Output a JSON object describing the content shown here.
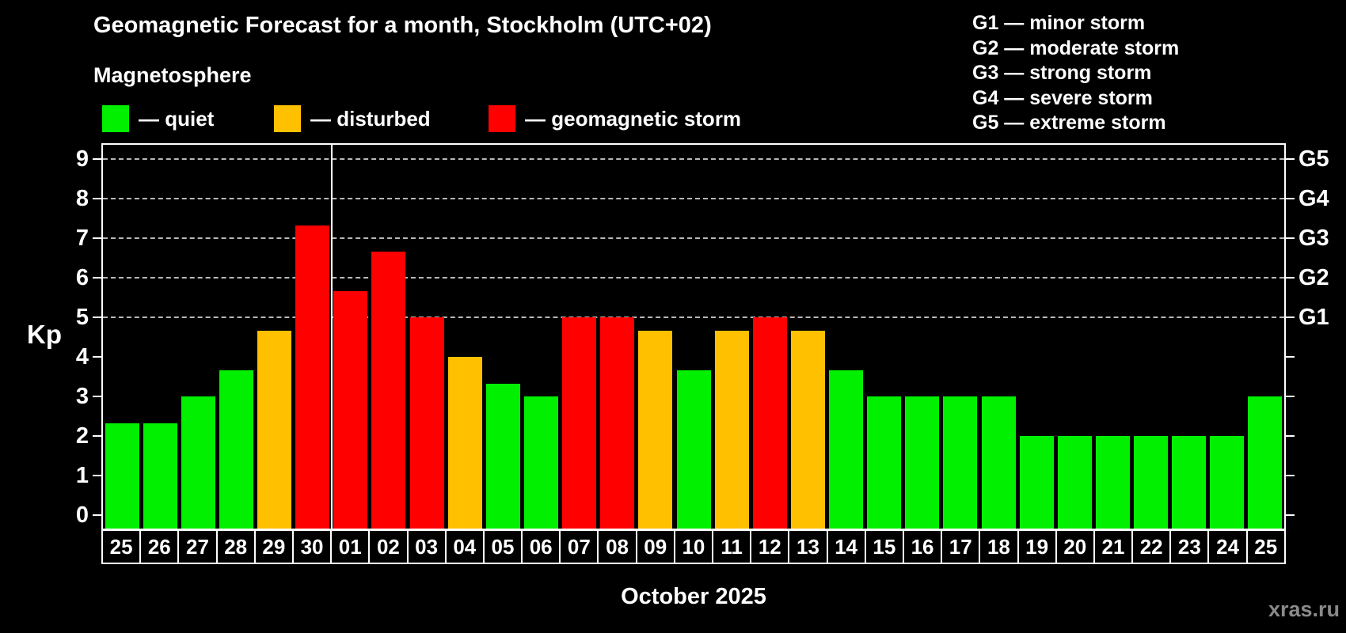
{
  "title": "Geomagnetic Forecast for a month, Stockholm (UTC+02)",
  "subtitle": "Magnetosphere",
  "status_legend": [
    {
      "status": "quiet",
      "label": "— quiet",
      "color": "#00f000"
    },
    {
      "status": "disturbed",
      "label": "— disturbed",
      "color": "#ffc000"
    },
    {
      "status": "storm",
      "label": "— geomagnetic storm",
      "color": "#ff0000"
    }
  ],
  "g_legend": [
    {
      "code": "G1",
      "label": "minor storm"
    },
    {
      "code": "G2",
      "label": "moderate storm"
    },
    {
      "code": "G3",
      "label": "strong storm"
    },
    {
      "code": "G4",
      "label": "severe storm"
    },
    {
      "code": "G5",
      "label": "extreme storm"
    }
  ],
  "watermark": "xras.ru",
  "chart_data": {
    "type": "bar",
    "title": "Geomagnetic Forecast for a month, Stockholm (UTC+02)",
    "ylabel": "Kp",
    "xlabel": "October 2025",
    "ylim": [
      0,
      9
    ],
    "yticks": [
      0,
      1,
      2,
      3,
      4,
      5,
      6,
      7,
      8,
      9
    ],
    "gridlines": [
      5,
      6,
      7,
      8,
      9
    ],
    "grid_style": "dashed",
    "legend_position": "top",
    "right_axis": [
      {
        "kp": 5,
        "label": "G1"
      },
      {
        "kp": 6,
        "label": "G2"
      },
      {
        "kp": 7,
        "label": "G3"
      },
      {
        "kp": 8,
        "label": "G4"
      },
      {
        "kp": 9,
        "label": "G5"
      }
    ],
    "month_boundary_index": 6,
    "days": [
      {
        "date": "25",
        "kp": 2.33,
        "status": "quiet"
      },
      {
        "date": "26",
        "kp": 2.33,
        "status": "quiet"
      },
      {
        "date": "27",
        "kp": 3,
        "status": "quiet"
      },
      {
        "date": "28",
        "kp": 3.67,
        "status": "quiet"
      },
      {
        "date": "29",
        "kp": 4.67,
        "status": "disturbed"
      },
      {
        "date": "30",
        "kp": 7.33,
        "status": "storm"
      },
      {
        "date": "01",
        "kp": 5.67,
        "status": "storm"
      },
      {
        "date": "02",
        "kp": 6.67,
        "status": "storm"
      },
      {
        "date": "03",
        "kp": 5,
        "status": "storm"
      },
      {
        "date": "04",
        "kp": 4,
        "status": "disturbed"
      },
      {
        "date": "05",
        "kp": 3.33,
        "status": "quiet"
      },
      {
        "date": "06",
        "kp": 3,
        "status": "quiet"
      },
      {
        "date": "07",
        "kp": 5,
        "status": "storm"
      },
      {
        "date": "08",
        "kp": 5,
        "status": "storm"
      },
      {
        "date": "09",
        "kp": 4.67,
        "status": "disturbed"
      },
      {
        "date": "10",
        "kp": 3.67,
        "status": "quiet"
      },
      {
        "date": "11",
        "kp": 4.67,
        "status": "disturbed"
      },
      {
        "date": "12",
        "kp": 5,
        "status": "storm"
      },
      {
        "date": "13",
        "kp": 4.67,
        "status": "disturbed"
      },
      {
        "date": "14",
        "kp": 3.67,
        "status": "quiet"
      },
      {
        "date": "15",
        "kp": 3,
        "status": "quiet"
      },
      {
        "date": "16",
        "kp": 3,
        "status": "quiet"
      },
      {
        "date": "17",
        "kp": 3,
        "status": "quiet"
      },
      {
        "date": "18",
        "kp": 3,
        "status": "quiet"
      },
      {
        "date": "19",
        "kp": 2,
        "status": "quiet"
      },
      {
        "date": "20",
        "kp": 2,
        "status": "quiet"
      },
      {
        "date": "21",
        "kp": 2,
        "status": "quiet"
      },
      {
        "date": "22",
        "kp": 2,
        "status": "quiet"
      },
      {
        "date": "23",
        "kp": 2,
        "status": "quiet"
      },
      {
        "date": "24",
        "kp": 2,
        "status": "quiet"
      },
      {
        "date": "25",
        "kp": 3,
        "status": "quiet"
      }
    ]
  }
}
